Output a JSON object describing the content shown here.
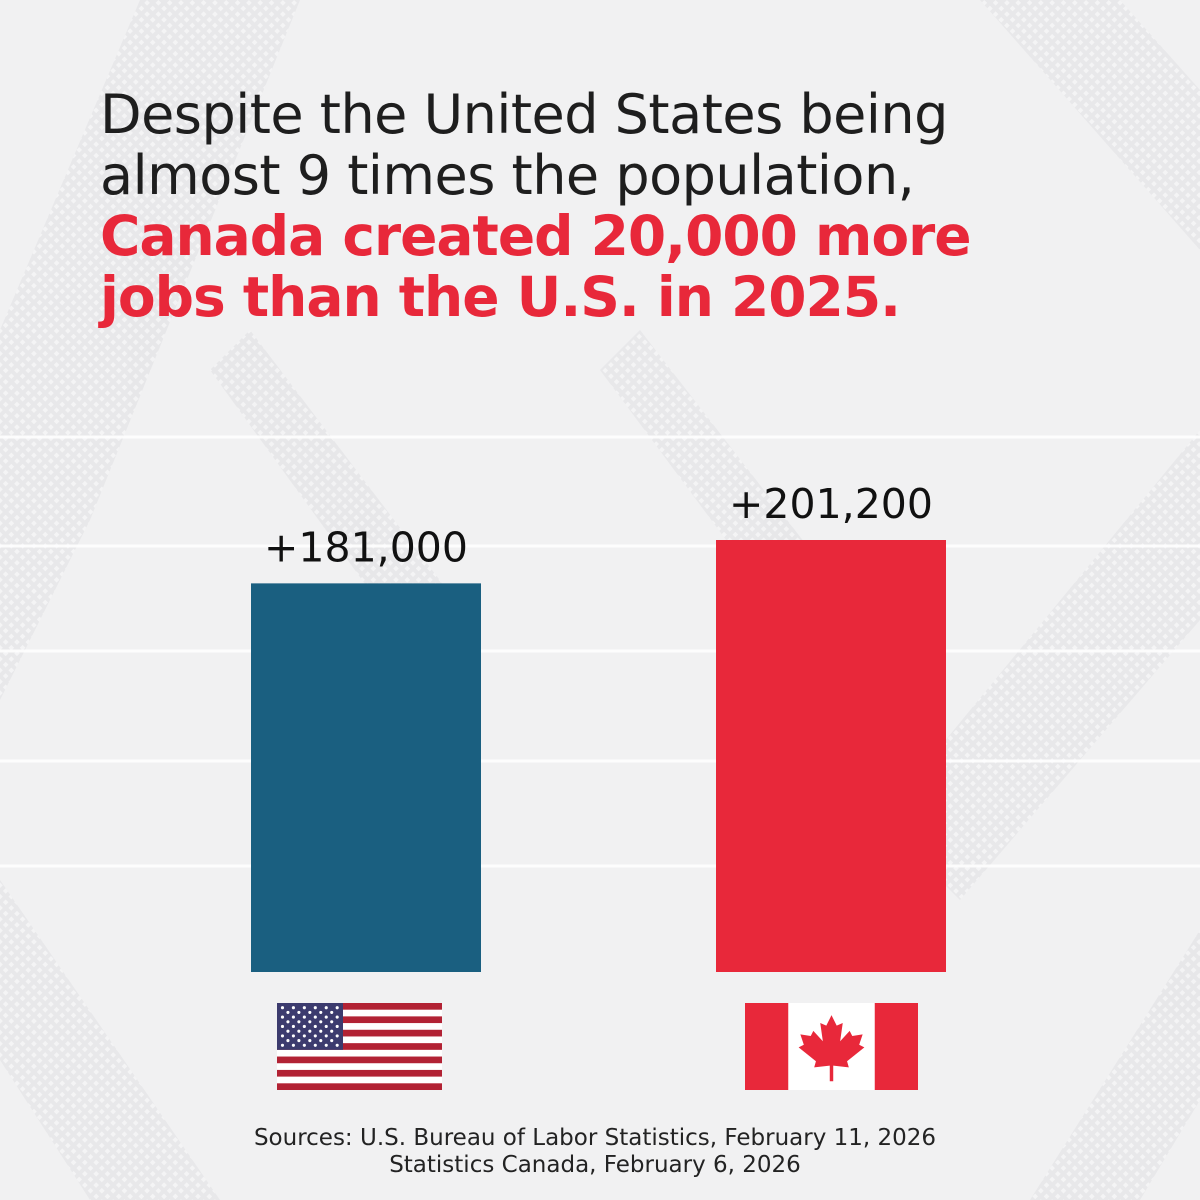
{
  "headline": {
    "line1": "Despite the United States being",
    "line2": "almost 9 times the population,",
    "line3": "Canada created 20,000 more",
    "line4": "jobs than the U.S. in 2025."
  },
  "colors": {
    "us_bar": "#1a5f80",
    "canada_bar": "#e8283a",
    "headline_accent": "#e8283a",
    "headline_text": "#1e1e1e",
    "background": "#f1f1f2"
  },
  "chart_data": {
    "type": "bar",
    "categories": [
      "United States",
      "Canada"
    ],
    "values": [
      181000,
      201200
    ],
    "data_labels": [
      "+181,000",
      "+201,200"
    ],
    "bar_colors": [
      "#1a5f80",
      "#e8283a"
    ],
    "title": "",
    "xlabel": "",
    "ylabel": "",
    "grid": false,
    "legend": "none",
    "category_markers": [
      "us-flag",
      "canada-flag"
    ]
  },
  "flags": {
    "us": "us-flag",
    "canada": "canada-flag"
  },
  "sources": {
    "line1": "Sources: U.S. Bureau of Labor Statistics, February 11, 2026",
    "line2": "Statistics Canada, February 6, 2026"
  }
}
